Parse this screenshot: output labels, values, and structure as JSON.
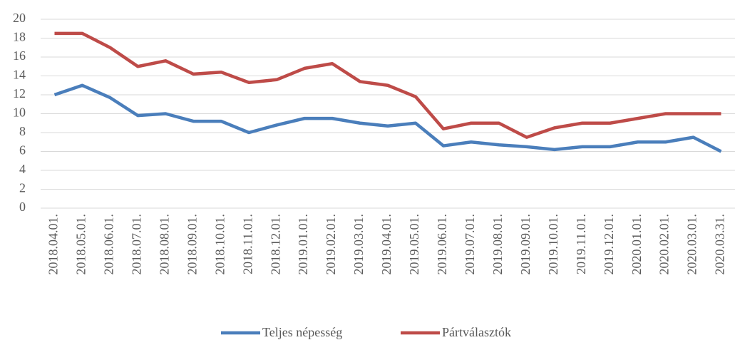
{
  "chart_data": {
    "type": "line",
    "categories": [
      "2018.04.01.",
      "2018.05.01.",
      "2018.06.01.",
      "2018.07.01.",
      "2018.08.01.",
      "2018.09.01.",
      "2018.10.01.",
      "2018.11.01.",
      "2018.12.01.",
      "2019.01.01.",
      "2019.02.01.",
      "2019.03.01.",
      "2019.04.01.",
      "2019.05.01.",
      "2019.06.01.",
      "2019.07.01.",
      "2019.08.01.",
      "2019.09.01.",
      "2019.10.01.",
      "2019.11.01.",
      "2019.12.01.",
      "2020.01.01.",
      "2020.02.01.",
      "2020.03.01.",
      "2020.03.31."
    ],
    "series": [
      {
        "name": "Teljes népesség",
        "color": "#4a7ebb",
        "values": [
          12,
          13,
          11.7,
          9.8,
          10,
          9.2,
          9.2,
          8,
          8.8,
          9.5,
          9.5,
          9,
          8.7,
          9,
          6.6,
          7,
          6.7,
          6.5,
          6.2,
          6.5,
          6.5,
          7,
          7,
          7.5,
          6
        ]
      },
      {
        "name": "Pártválasztók",
        "color": "#be4b48",
        "values": [
          18.5,
          18.5,
          17,
          15,
          15.6,
          14.2,
          14.4,
          13.3,
          13.6,
          14.8,
          15.3,
          13.4,
          13,
          11.8,
          8.4,
          9,
          9,
          7.5,
          8.5,
          9,
          9,
          9.5,
          10,
          10,
          10
        ]
      }
    ],
    "ylim": [
      0,
      20
    ],
    "yticks": [
      0,
      2,
      4,
      6,
      8,
      10,
      12,
      14,
      16,
      18,
      20
    ],
    "grid": true,
    "legend": "bottom"
  }
}
